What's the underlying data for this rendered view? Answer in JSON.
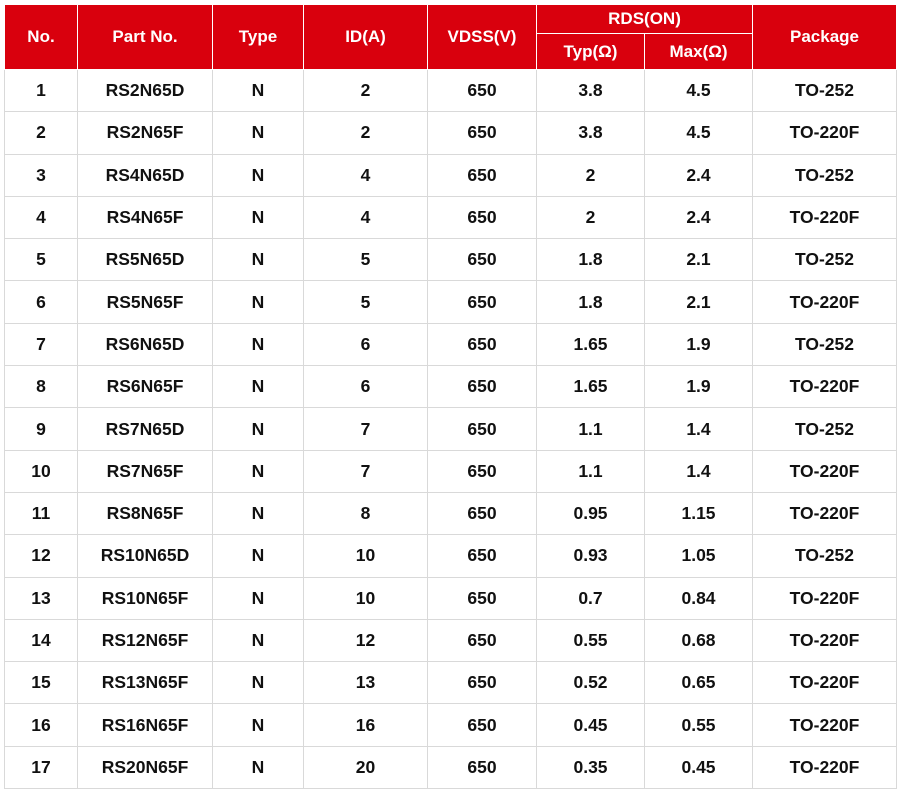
{
  "headers": {
    "no": "No.",
    "part_no": "Part No.",
    "type": "Type",
    "id": "ID(A)",
    "vdss": "VDSS(V)",
    "rds_on": "RDS(ON)",
    "typ": "Typ(Ω)",
    "max": "Max(Ω)",
    "package": "Package"
  },
  "rows": [
    {
      "no": "1",
      "part_no": "RS2N65D",
      "type": "N",
      "id": "2",
      "vdss": "650",
      "typ": "3.8",
      "max": "4.5",
      "package": "TO-252"
    },
    {
      "no": "2",
      "part_no": "RS2N65F",
      "type": "N",
      "id": "2",
      "vdss": "650",
      "typ": "3.8",
      "max": "4.5",
      "package": "TO-220F"
    },
    {
      "no": "3",
      "part_no": "RS4N65D",
      "type": "N",
      "id": "4",
      "vdss": "650",
      "typ": "2",
      "max": "2.4",
      "package": "TO-252"
    },
    {
      "no": "4",
      "part_no": "RS4N65F",
      "type": "N",
      "id": "4",
      "vdss": "650",
      "typ": "2",
      "max": "2.4",
      "package": "TO-220F"
    },
    {
      "no": "5",
      "part_no": "RS5N65D",
      "type": "N",
      "id": "5",
      "vdss": "650",
      "typ": "1.8",
      "max": "2.1",
      "package": "TO-252"
    },
    {
      "no": "6",
      "part_no": "RS5N65F",
      "type": "N",
      "id": "5",
      "vdss": "650",
      "typ": "1.8",
      "max": "2.1",
      "package": "TO-220F"
    },
    {
      "no": "7",
      "part_no": "RS6N65D",
      "type": "N",
      "id": "6",
      "vdss": "650",
      "typ": "1.65",
      "max": "1.9",
      "package": "TO-252"
    },
    {
      "no": "8",
      "part_no": "RS6N65F",
      "type": "N",
      "id": "6",
      "vdss": "650",
      "typ": "1.65",
      "max": "1.9",
      "package": "TO-220F"
    },
    {
      "no": "9",
      "part_no": "RS7N65D",
      "type": "N",
      "id": "7",
      "vdss": "650",
      "typ": "1.1",
      "max": "1.4",
      "package": "TO-252"
    },
    {
      "no": "10",
      "part_no": "RS7N65F",
      "type": "N",
      "id": "7",
      "vdss": "650",
      "typ": "1.1",
      "max": "1.4",
      "package": "TO-220F"
    },
    {
      "no": "11",
      "part_no": "RS8N65F",
      "type": "N",
      "id": "8",
      "vdss": "650",
      "typ": "0.95",
      "max": "1.15",
      "package": "TO-220F"
    },
    {
      "no": "12",
      "part_no": "RS10N65D",
      "type": "N",
      "id": "10",
      "vdss": "650",
      "typ": "0.93",
      "max": "1.05",
      "package": "TO-252"
    },
    {
      "no": "13",
      "part_no": "RS10N65F",
      "type": "N",
      "id": "10",
      "vdss": "650",
      "typ": "0.7",
      "max": "0.84",
      "package": "TO-220F"
    },
    {
      "no": "14",
      "part_no": "RS12N65F",
      "type": "N",
      "id": "12",
      "vdss": "650",
      "typ": "0.55",
      "max": "0.68",
      "package": "TO-220F"
    },
    {
      "no": "15",
      "part_no": "RS13N65F",
      "type": "N",
      "id": "13",
      "vdss": "650",
      "typ": "0.52",
      "max": "0.65",
      "package": "TO-220F"
    },
    {
      "no": "16",
      "part_no": "RS16N65F",
      "type": "N",
      "id": "16",
      "vdss": "650",
      "typ": "0.45",
      "max": "0.55",
      "package": "TO-220F"
    },
    {
      "no": "17",
      "part_no": "RS20N65F",
      "type": "N",
      "id": "20",
      "vdss": "650",
      "typ": "0.35",
      "max": "0.45",
      "package": "TO-220F"
    }
  ],
  "colors": {
    "header_bg": "#d9000d",
    "header_text": "#ffffff",
    "grid_line": "#d9d9d9",
    "body_text": "#111111"
  }
}
